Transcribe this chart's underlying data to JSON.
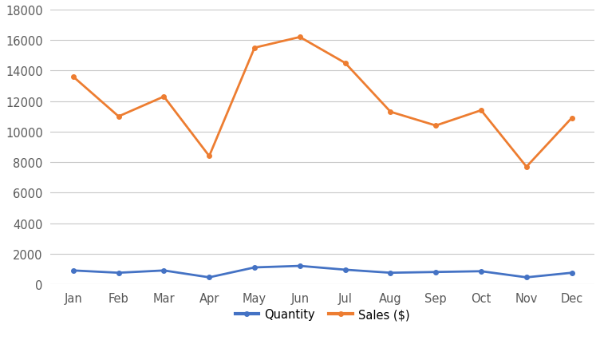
{
  "months": [
    "Jan",
    "Feb",
    "Mar",
    "Apr",
    "May",
    "Jun",
    "Jul",
    "Aug",
    "Sep",
    "Oct",
    "Nov",
    "Dec"
  ],
  "quantity": [
    900,
    750,
    900,
    450,
    1100,
    1200,
    950,
    750,
    800,
    850,
    450,
    750
  ],
  "sales": [
    13600,
    11000,
    12300,
    8400,
    15500,
    16200,
    14500,
    11300,
    10400,
    11400,
    7700,
    10900
  ],
  "quantity_color": "#4472C4",
  "sales_color": "#ED7D31",
  "line_width": 2.0,
  "ylim": [
    0,
    18000
  ],
  "yticks": [
    0,
    2000,
    4000,
    6000,
    8000,
    10000,
    12000,
    14000,
    16000,
    18000
  ],
  "grid_color": "#C8C8C8",
  "bg_color": "#FFFFFF",
  "legend_quantity": "Quantity",
  "legend_sales": "Sales ($)",
  "marker": "o",
  "marker_size": 4,
  "tick_fontsize": 10.5,
  "legend_fontsize": 10.5
}
